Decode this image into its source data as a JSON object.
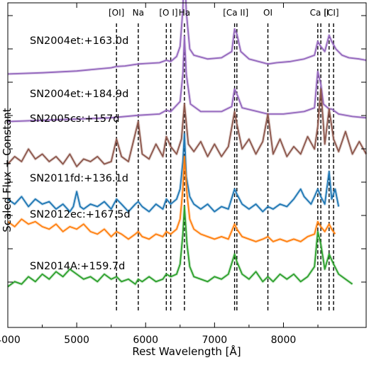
{
  "chart_data": {
    "type": "line",
    "xlabel": "Rest Wavelength [Å]",
    "ylabel": "Scaled Flux + Constant",
    "xlim": [
      4000,
      9200
    ],
    "x_ticks": [
      4000,
      5000,
      6000,
      7000,
      8000
    ],
    "grid": false,
    "line_markers": [
      {
        "label": "[OI]",
        "wavelengths": [
          5577
        ]
      },
      {
        "label": "Na",
        "wavelengths": [
          5893
        ]
      },
      {
        "label": "[O I]",
        "wavelengths": [
          6300,
          6364
        ]
      },
      {
        "label": "Ha",
        "wavelengths": [
          6563
        ]
      },
      {
        "label": "[Ca II]",
        "wavelengths": [
          7291,
          7324
        ]
      },
      {
        "label": "OI",
        "wavelengths": [
          7774
        ]
      },
      {
        "label": "Ca II",
        "wavelengths": [
          8498,
          8542
        ]
      },
      {
        "label": "[CI]",
        "wavelengths": [
          8662,
          8727
        ]
      }
    ],
    "series": [
      {
        "name": "SN2004et:+163.0d",
        "color": "#9467bd",
        "offset": 8.6,
        "x": [
          4000,
          4500,
          5000,
          5300,
          5500,
          5577,
          5700,
          5893,
          6000,
          6200,
          6300,
          6364,
          6450,
          6500,
          6540,
          6563,
          6590,
          6640,
          6700,
          6900,
          7100,
          7250,
          7291,
          7324,
          7380,
          7500,
          7774,
          7900,
          8100,
          8300,
          8450,
          8498,
          8542,
          8600,
          8662,
          8700,
          8760,
          8850,
          8950,
          9100,
          9200
        ],
        "y": [
          0.0,
          0.05,
          0.12,
          0.2,
          0.25,
          0.3,
          0.32,
          0.4,
          0.42,
          0.45,
          0.55,
          0.5,
          0.7,
          1.1,
          2.6,
          4.4,
          2.5,
          1.0,
          0.75,
          0.6,
          0.65,
          0.9,
          1.8,
          1.6,
          0.9,
          0.6,
          0.4,
          0.45,
          0.5,
          0.6,
          0.75,
          1.3,
          1.1,
          0.9,
          1.55,
          1.3,
          1.0,
          0.75,
          0.65,
          0.6,
          0.55
        ]
      },
      {
        "name": "SN2004et:+184.9d",
        "color": "#9467bd",
        "offset": 6.7,
        "x": [
          4000,
          4500,
          5000,
          5500,
          5893,
          6200,
          6300,
          6364,
          6500,
          6540,
          6563,
          6590,
          6650,
          6800,
          7100,
          7250,
          7291,
          7324,
          7400,
          7774,
          8000,
          8300,
          8450,
          8498,
          8542,
          8580,
          8662,
          8700,
          8800,
          9000,
          9200
        ],
        "y": [
          0.0,
          0.05,
          0.1,
          0.15,
          0.25,
          0.3,
          0.45,
          0.4,
          0.8,
          1.9,
          3.4,
          1.9,
          0.7,
          0.4,
          0.4,
          0.6,
          1.3,
          1.1,
          0.55,
          0.3,
          0.3,
          0.4,
          0.55,
          2.0,
          1.5,
          0.7,
          0.5,
          0.5,
          0.3,
          0.2,
          0.15
        ]
      },
      {
        "name": "SN2005cs:+157d",
        "color": "#8c564b",
        "offset": 4.8,
        "x": [
          4000,
          4100,
          4200,
          4300,
          4400,
          4500,
          4600,
          4700,
          4800,
          4900,
          5000,
          5100,
          5200,
          5300,
          5400,
          5500,
          5577,
          5650,
          5750,
          5893,
          5950,
          6050,
          6150,
          6250,
          6300,
          6364,
          6450,
          6520,
          6563,
          6620,
          6700,
          6800,
          6900,
          7000,
          7100,
          7200,
          7291,
          7324,
          7400,
          7500,
          7600,
          7700,
          7774,
          7850,
          7950,
          8050,
          8150,
          8250,
          8350,
          8450,
          8498,
          8542,
          8600,
          8662,
          8727,
          8800,
          8900,
          9000,
          9100,
          9200
        ],
        "y": [
          0.2,
          0.5,
          0.3,
          0.8,
          0.4,
          0.6,
          0.3,
          0.5,
          0.2,
          0.6,
          0.1,
          0.4,
          0.3,
          0.5,
          0.2,
          0.3,
          1.2,
          0.5,
          0.3,
          1.9,
          0.6,
          0.4,
          1.0,
          0.5,
          1.3,
          0.9,
          0.6,
          1.2,
          2.6,
          1.0,
          0.7,
          1.1,
          0.5,
          1.0,
          0.5,
          0.9,
          2.3,
          1.8,
          0.8,
          1.2,
          0.6,
          1.1,
          2.2,
          0.6,
          1.2,
          0.5,
          0.9,
          0.6,
          1.3,
          0.8,
          1.7,
          3.2,
          1.0,
          2.4,
          1.2,
          0.7,
          1.5,
          0.6,
          1.1,
          0.6
        ]
      },
      {
        "name": "SN2011fd:+136.1d",
        "color": "#1f77b4",
        "offset": 3.1,
        "x": [
          4000,
          4100,
          4200,
          4300,
          4400,
          4500,
          4600,
          4700,
          4800,
          4900,
          4950,
          5000,
          5050,
          5100,
          5200,
          5300,
          5400,
          5500,
          5577,
          5650,
          5750,
          5850,
          5893,
          5950,
          6050,
          6150,
          6250,
          6300,
          6364,
          6450,
          6500,
          6540,
          6563,
          6590,
          6640,
          6700,
          6800,
          6900,
          7000,
          7100,
          7200,
          7291,
          7324,
          7400,
          7500,
          7600,
          7700,
          7774,
          7850,
          7950,
          8050,
          8150,
          8250,
          8300,
          8400,
          8450,
          8498,
          8542,
          8600,
          8662,
          8700,
          8750,
          8800
        ],
        "y": [
          0.5,
          0.3,
          0.6,
          0.2,
          0.5,
          0.3,
          0.4,
          0.1,
          0.3,
          0.0,
          0.2,
          0.8,
          0.2,
          0.1,
          0.3,
          0.2,
          0.4,
          0.1,
          0.5,
          0.3,
          0.0,
          0.3,
          0.4,
          0.2,
          0.0,
          0.3,
          0.1,
          0.5,
          0.3,
          0.5,
          0.9,
          2.0,
          3.1,
          1.4,
          0.6,
          0.3,
          0.1,
          0.3,
          0.0,
          0.2,
          0.1,
          0.9,
          0.7,
          0.3,
          0.1,
          0.3,
          0.0,
          0.2,
          0.1,
          0.3,
          0.2,
          0.5,
          0.9,
          0.6,
          0.3,
          0.6,
          0.9,
          0.6,
          0.3,
          1.6,
          0.5,
          0.9,
          0.2
        ]
      },
      {
        "name": "SN2012ec:+167.5d",
        "color": "#ff7f0e",
        "offset": 1.8,
        "x": [
          4000,
          4100,
          4200,
          4300,
          4400,
          4500,
          4600,
          4700,
          4800,
          4900,
          5000,
          5100,
          5200,
          5300,
          5400,
          5500,
          5577,
          5650,
          5750,
          5850,
          5893,
          5950,
          6050,
          6150,
          6250,
          6300,
          6364,
          6450,
          6500,
          6540,
          6563,
          6600,
          6640,
          6700,
          6800,
          6900,
          7000,
          7100,
          7200,
          7291,
          7324,
          7400,
          7500,
          7600,
          7700,
          7774,
          7850,
          7950,
          8050,
          8150,
          8250,
          8350,
          8450,
          8498,
          8542,
          8600,
          8662,
          8700,
          8750
        ],
        "y": [
          0.9,
          0.7,
          1.0,
          0.8,
          0.9,
          0.7,
          0.6,
          0.8,
          0.5,
          0.7,
          0.6,
          0.8,
          0.5,
          0.4,
          0.6,
          0.3,
          0.5,
          0.4,
          0.2,
          0.4,
          0.5,
          0.3,
          0.2,
          0.4,
          0.3,
          0.5,
          0.4,
          0.6,
          1.0,
          2.2,
          3.5,
          2.0,
          1.0,
          0.6,
          0.4,
          0.3,
          0.2,
          0.3,
          0.2,
          0.8,
          0.6,
          0.3,
          0.2,
          0.1,
          0.2,
          0.3,
          0.1,
          0.2,
          0.1,
          0.2,
          0.1,
          0.3,
          0.4,
          0.9,
          0.7,
          0.5,
          0.8,
          0.6,
          0.4
        ]
      },
      {
        "name": "SN2014A:+159.7d",
        "color": "#2ca02c",
        "offset": 0.0,
        "x": [
          4000,
          4100,
          4200,
          4300,
          4400,
          4500,
          4600,
          4700,
          4800,
          4900,
          5000,
          5100,
          5200,
          5300,
          5400,
          5500,
          5577,
          5650,
          5750,
          5850,
          5893,
          5950,
          6050,
          6150,
          6250,
          6300,
          6364,
          6450,
          6500,
          6540,
          6563,
          6600,
          6640,
          6700,
          6800,
          6900,
          7000,
          7100,
          7200,
          7291,
          7324,
          7400,
          7500,
          7600,
          7700,
          7774,
          7850,
          7950,
          8050,
          8150,
          8250,
          8350,
          8450,
          8498,
          8542,
          8600,
          8662,
          8727,
          8800,
          8900,
          9000
        ],
        "y": [
          0.1,
          0.3,
          0.2,
          0.5,
          0.3,
          0.6,
          0.4,
          0.7,
          0.5,
          0.8,
          0.6,
          0.4,
          0.5,
          0.3,
          0.6,
          0.4,
          0.5,
          0.3,
          0.4,
          0.2,
          0.4,
          0.3,
          0.5,
          0.3,
          0.4,
          0.6,
          0.5,
          0.6,
          1.0,
          2.2,
          3.3,
          1.8,
          0.9,
          0.5,
          0.4,
          0.3,
          0.5,
          0.4,
          0.6,
          1.4,
          1.1,
          0.6,
          0.4,
          0.7,
          0.3,
          0.5,
          0.3,
          0.6,
          0.4,
          0.6,
          0.3,
          0.5,
          0.9,
          2.3,
          1.8,
          0.8,
          1.4,
          1.0,
          0.6,
          0.4,
          0.2
        ]
      }
    ]
  }
}
